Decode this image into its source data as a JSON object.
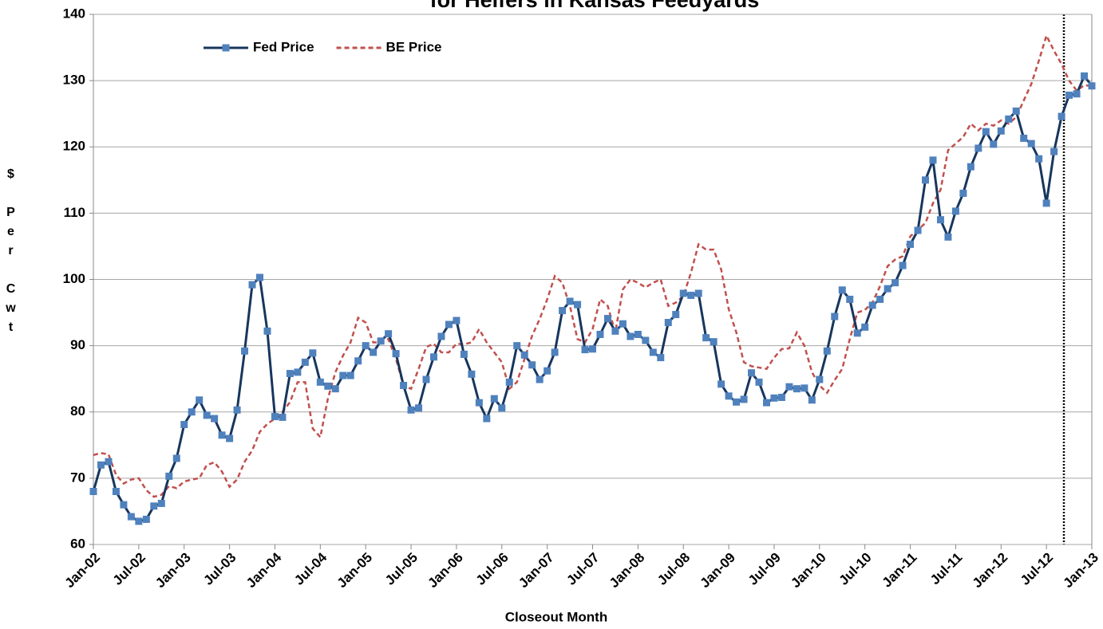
{
  "chart_data": {
    "type": "line",
    "title": "for Heifers in Kansas Feedyards",
    "xlabel": "Closeout Month",
    "ylabel": "$ Per Cwt",
    "categories": [
      "Jan-02",
      null,
      null,
      null,
      null,
      null,
      "Jul-02",
      null,
      null,
      null,
      null,
      null,
      "Jan-03",
      null,
      null,
      null,
      null,
      null,
      "Jul-03",
      null,
      null,
      null,
      null,
      null,
      "Jan-04",
      null,
      null,
      null,
      null,
      null,
      "Jul-04",
      null,
      null,
      null,
      null,
      null,
      "Jan-05",
      null,
      null,
      null,
      null,
      null,
      "Jul-05",
      null,
      null,
      null,
      null,
      null,
      "Jan-06",
      null,
      null,
      null,
      null,
      null,
      "Jul-06",
      null,
      null,
      null,
      null,
      null,
      "Jan-07",
      null,
      null,
      null,
      null,
      null,
      "Jul-07",
      null,
      null,
      null,
      null,
      null,
      "Jan-08",
      null,
      null,
      null,
      null,
      null,
      "Jul-08",
      null,
      null,
      null,
      null,
      null,
      "Jan-09",
      null,
      null,
      null,
      null,
      null,
      "Jul-09",
      null,
      null,
      null,
      null,
      null,
      "Jan-10",
      null,
      null,
      null,
      null,
      null,
      "Jul-10",
      null,
      null,
      null,
      null,
      null,
      "Jan-11",
      null,
      null,
      null,
      null,
      null,
      "Jul-11",
      null,
      null,
      null,
      null,
      null,
      "Jan-12",
      null,
      null,
      null,
      null,
      null,
      "Jul-12",
      null,
      null,
      null,
      null,
      null,
      "Jan-13"
    ],
    "series": [
      {
        "name": "Fed Price",
        "color": "#17365d",
        "marker_color": "#4f81bd",
        "style": "solid",
        "values": [
          68,
          72,
          72.5,
          68,
          66,
          64.2,
          63.5,
          63.8,
          65.8,
          66.2,
          70.3,
          73,
          78.1,
          80,
          81.8,
          79.5,
          79,
          76.5,
          76,
          80.3,
          89.2,
          99.2,
          100.3,
          92.2,
          79.3,
          79.2,
          85.8,
          86,
          87.5,
          88.9,
          84.5,
          83.9,
          83.5,
          85.5,
          85.5,
          87.7,
          90,
          89,
          90.7,
          91.8,
          88.8,
          84,
          80.3,
          80.6,
          84.9,
          88.3,
          91.4,
          93.2,
          93.8,
          88.7,
          85.7,
          81.4,
          79,
          82,
          80.6,
          84.5,
          90,
          88.6,
          87.1,
          84.9,
          86.2,
          89,
          95.3,
          96.7,
          96.2,
          89.4,
          89.5,
          91.7,
          94.1,
          92.2,
          93.3,
          91.4,
          91.7,
          90.8,
          89,
          88.2,
          93.5,
          94.7,
          97.9,
          97.6,
          97.9,
          91.2,
          90.6,
          84.2,
          82.4,
          81.5,
          81.9,
          85.9,
          84.5,
          81.4,
          82.1,
          82.2,
          83.8,
          83.5,
          83.6,
          81.8,
          84.9,
          89.2,
          94.4,
          98.4,
          97,
          91.9,
          92.8,
          96.1,
          97,
          98.6,
          99.5,
          102.1,
          105.3,
          107.4,
          115,
          118,
          109,
          106.4,
          110.3,
          113,
          117,
          119.8,
          122.3,
          120.4,
          122.4,
          124.2,
          125.4,
          121.3,
          120.5,
          118.2,
          111.5,
          119.3,
          124.6,
          127.8,
          128,
          130.7,
          129.2
        ]
      },
      {
        "name": "BE Price",
        "color": "#c0504d",
        "style": "dashed",
        "values": [
          73.5,
          73.8,
          73.6,
          70.5,
          69.2,
          69.8,
          70,
          68.2,
          67.2,
          67.5,
          68.8,
          68.5,
          69.5,
          69.8,
          70,
          72,
          72.4,
          71,
          68.7,
          69.8,
          72.5,
          74.2,
          77,
          78.2,
          79,
          80,
          81.5,
          84.5,
          84.5,
          77.5,
          76.2,
          82,
          86,
          88.5,
          90.5,
          94.2,
          93.5,
          90.5,
          90.5,
          91,
          88,
          84,
          83.5,
          86.5,
          89.8,
          90.3,
          89,
          89,
          90.3,
          90.2,
          90.5,
          92.5,
          90.5,
          89,
          87.5,
          83.5,
          84.5,
          88,
          91.5,
          94,
          97,
          100.5,
          99.5,
          96,
          91,
          90.5,
          92.5,
          97,
          96,
          92,
          98.5,
          100,
          99.5,
          98.8,
          99.5,
          100,
          96,
          96.5,
          97.5,
          101,
          105.3,
          104.5,
          104.5,
          101.5,
          95.5,
          92,
          87.5,
          86.9,
          86.7,
          86.5,
          88.2,
          89.5,
          89.6,
          92,
          90,
          86,
          84,
          82.9,
          84.8,
          86.5,
          91,
          95,
          95.4,
          96.5,
          99,
          102,
          103,
          103.5,
          106.5,
          107.5,
          108.5,
          111.5,
          113.5,
          119.5,
          120.5,
          121.5,
          123.5,
          122.5,
          123.5,
          123.2,
          124,
          123.5,
          124.5,
          127,
          129.5,
          133,
          136.8,
          134.5,
          132.5,
          130,
          128.5,
          129.3,
          129.2
        ]
      }
    ],
    "ylim": [
      60,
      140
    ],
    "yticks": [
      60,
      70,
      80,
      90,
      100,
      110,
      120,
      130,
      140
    ],
    "grid": true,
    "legend": "top-left"
  }
}
